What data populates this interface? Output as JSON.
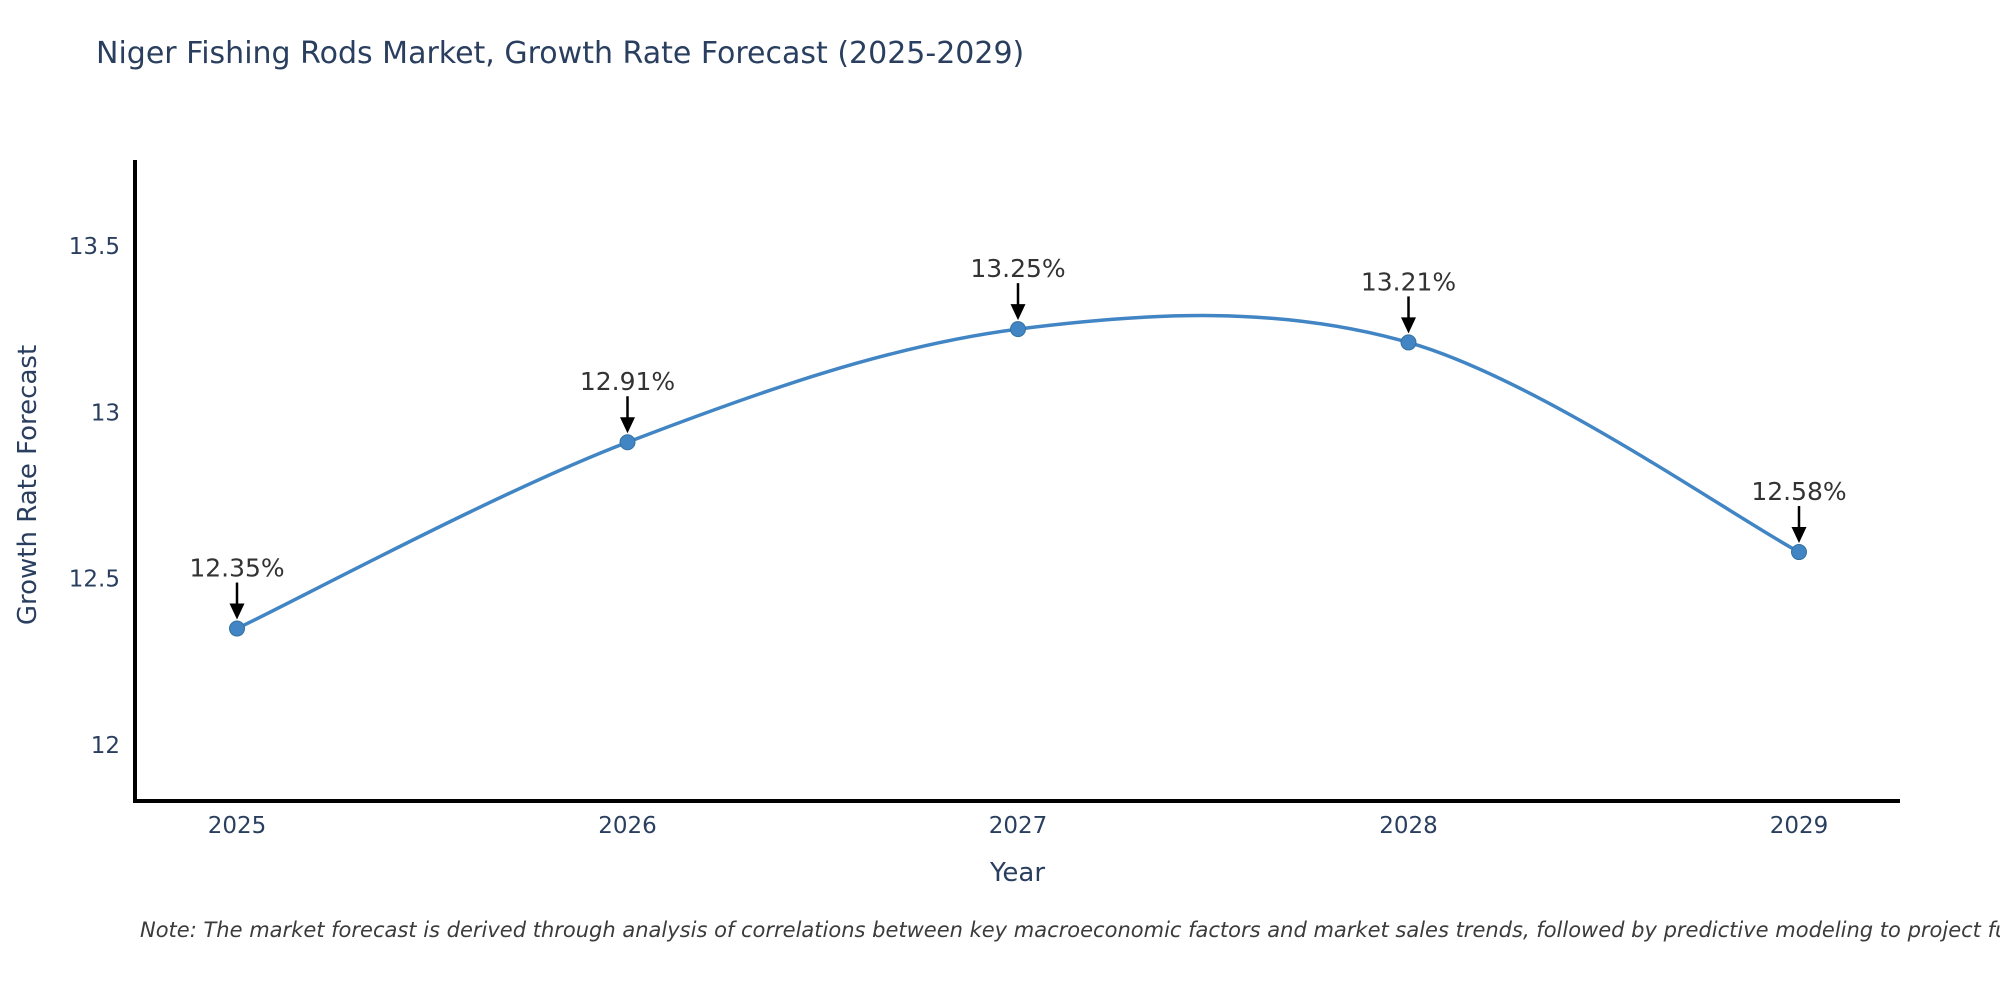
{
  "chart": {
    "note": "Note: The market forecast is derived through analysis of correlations between key macroeconomic factors and market sales trends, followed by predictive modeling to project future sal"
  },
  "chart_data": {
    "type": "line",
    "title": "Niger Fishing Rods Market, Growth Rate Forecast (2025-2029)",
    "xlabel": "Year",
    "ylabel": "Growth Rate Forecast",
    "x": [
      2025,
      2026,
      2027,
      2028,
      2029
    ],
    "values": [
      12.35,
      12.91,
      13.25,
      13.21,
      12.58
    ],
    "point_labels": [
      "12.35%",
      "12.91%",
      "13.25%",
      "13.21%",
      "12.58%"
    ],
    "xtick_labels": [
      "2025",
      "2026",
      "2027",
      "2028",
      "2029"
    ],
    "yticks": [
      12,
      12.5,
      13,
      13.5
    ],
    "ytick_labels": [
      "12",
      "12.5",
      "13",
      "13.5"
    ],
    "ylim": [
      11.83,
      13.77
    ],
    "line_shape": "spline",
    "grid": false,
    "legend_position": "none",
    "colors": {
      "line": "#4185c4",
      "marker_fill": "#4185c4",
      "marker_edge": "#35719f",
      "axis_line": "#000000",
      "tick_text": "#2a3f5f",
      "annotation_text": "#333333",
      "annotation_arrow": "#000000",
      "background": "#ffffff"
    }
  }
}
